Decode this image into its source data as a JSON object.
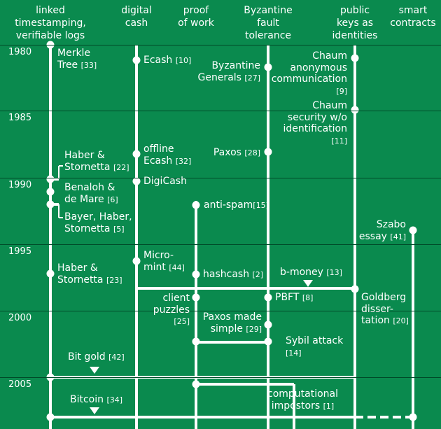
{
  "headers": [
    {
      "id": "linked",
      "text": "linked\ntimestamping,\nverifiable logs"
    },
    {
      "id": "digital",
      "text": "digital\ncash"
    },
    {
      "id": "proof",
      "text": "proof\nof work"
    },
    {
      "id": "byzantine",
      "text": "Byzantine\nfault\ntolerance"
    },
    {
      "id": "publickeys",
      "text": "public\nkeys as\nidentities"
    },
    {
      "id": "smart",
      "text": "smart\ncontracts"
    }
  ],
  "years": [
    "1980",
    "1985",
    "1990",
    "1995",
    "2000",
    "2005"
  ],
  "milestones": [
    {
      "id": "merkle",
      "text": "Merkle\nTree",
      "ref": "[33]"
    },
    {
      "id": "ecash",
      "text": "Ecash",
      "ref": "[10]"
    },
    {
      "id": "byz-generals",
      "text": "Byzantine\nGenerals",
      "ref": "[27]"
    },
    {
      "id": "chaum-anon",
      "text": "Chaum\nanonymous\ncommunication",
      "ref": "[9]"
    },
    {
      "id": "chaum-security",
      "text": "Chaum\nsecurity w/o\nidentification",
      "ref": "[11]"
    },
    {
      "id": "haber-1",
      "text": "Haber &\nStornetta",
      "ref": "[22]"
    },
    {
      "id": "offline-ecash",
      "text": "offline\nEcash",
      "ref": "[32]"
    },
    {
      "id": "paxos",
      "text": "Paxos",
      "ref": "[28]"
    },
    {
      "id": "digicash",
      "text": "DigiCash",
      "ref": ""
    },
    {
      "id": "benaloh",
      "text": "Benaloh &\nde Mare",
      "ref": "[6]"
    },
    {
      "id": "anti-spam",
      "text": "anti-spam",
      "ref": "[15]"
    },
    {
      "id": "bayer",
      "text": "Bayer, Haber,\nStornetta",
      "ref": "[5]"
    },
    {
      "id": "szabo",
      "text": "Szabo\nessay",
      "ref": "[41]"
    },
    {
      "id": "micromint",
      "text": "Micro-\nmint",
      "ref": "[44]"
    },
    {
      "id": "haber-2",
      "text": "Haber &\nStornetta",
      "ref": "[23]"
    },
    {
      "id": "hashcash",
      "text": "hashcash",
      "ref": "[2]"
    },
    {
      "id": "b-money",
      "text": "b-money",
      "ref": "[13]"
    },
    {
      "id": "client-puzzles",
      "text": "client\npuzzles",
      "ref": "[25]"
    },
    {
      "id": "pbft",
      "text": "PBFT",
      "ref": "[8]"
    },
    {
      "id": "goldberg",
      "text": "Goldberg\ndisser-\ntation",
      "ref": "[20]"
    },
    {
      "id": "paxos-simple",
      "text": "Paxos made\nsimple",
      "ref": "[29]"
    },
    {
      "id": "sybil",
      "text": "Sybil attack",
      "ref": "[14]"
    },
    {
      "id": "bit-gold",
      "text": "Bit gold",
      "ref": "[42]"
    },
    {
      "id": "comp-impostors",
      "text": "computational\nimpostors",
      "ref": "[1]"
    },
    {
      "id": "bitcoin",
      "text": "Bitcoin",
      "ref": "[34]"
    }
  ]
}
